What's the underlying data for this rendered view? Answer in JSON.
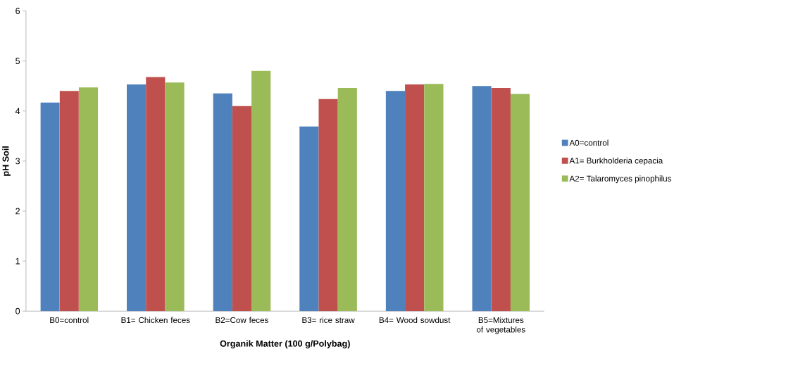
{
  "chart_data": {
    "type": "bar",
    "xlabel": "Organik Matter (100 g/Polybag)",
    "ylabel": "pH Soil",
    "categories": [
      "B0=control",
      "B1= Chicken feces",
      "B2=Cow feces",
      "B3= rice straw",
      "B4= Wood sowdust",
      "B5=Mixtures of vegetables"
    ],
    "series": [
      {
        "name": "A0=control",
        "color": "#4f81bd",
        "values": [
          4.17,
          4.53,
          4.35,
          3.69,
          4.4,
          4.5
        ]
      },
      {
        "name": "A1= Burkholderia cepacia",
        "color": "#c0504d",
        "values": [
          4.4,
          4.68,
          4.1,
          4.24,
          4.53,
          4.46
        ]
      },
      {
        "name": "A2= Talaromyces pinophilus",
        "color": "#9bbb59",
        "values": [
          4.47,
          4.57,
          4.8,
          4.46,
          4.54,
          4.34
        ]
      }
    ],
    "ylim": [
      0,
      6
    ],
    "yticks": [
      0,
      1,
      2,
      3,
      4,
      5,
      6
    ],
    "grid": false,
    "legend": "right"
  }
}
